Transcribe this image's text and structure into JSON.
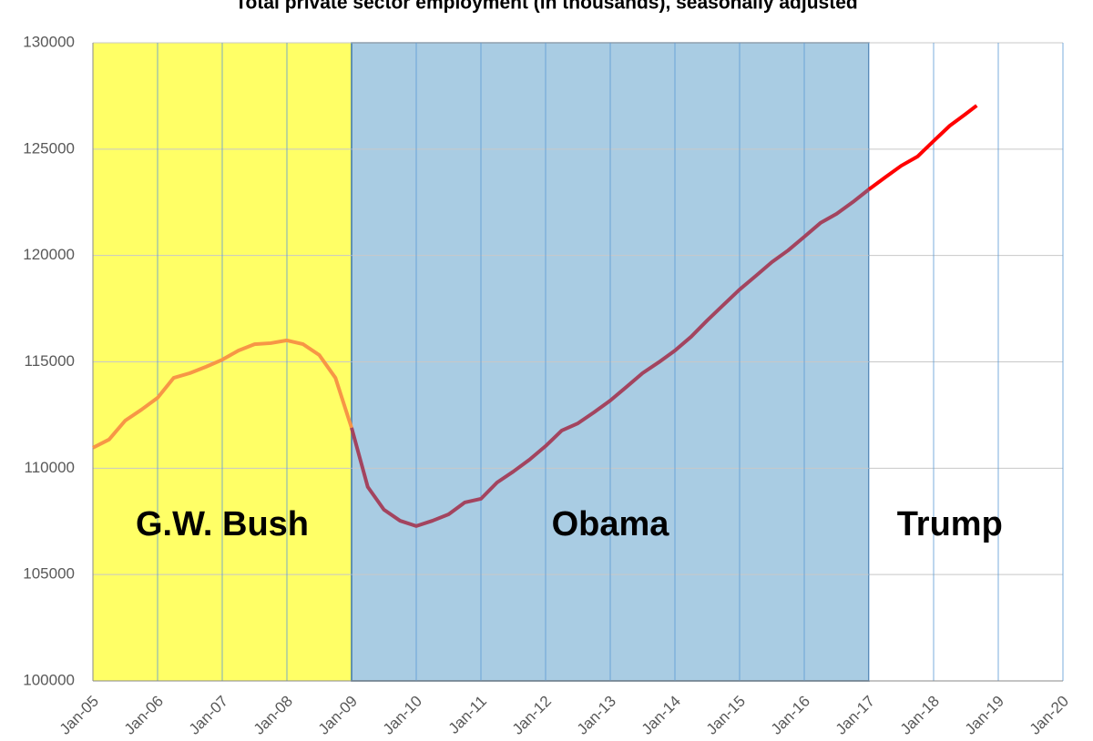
{
  "chart_data": {
    "type": "line",
    "title": "Total private sector employment (in thousands), seasonally adjusted",
    "x": [
      "2005-01",
      "2005-04",
      "2005-07",
      "2005-10",
      "2006-01",
      "2006-04",
      "2006-07",
      "2006-10",
      "2007-01",
      "2007-04",
      "2007-07",
      "2007-10",
      "2008-01",
      "2008-04",
      "2008-07",
      "2008-10",
      "2009-01",
      "2009-04",
      "2009-07",
      "2009-10",
      "2010-01",
      "2010-04",
      "2010-07",
      "2010-10",
      "2011-01",
      "2011-04",
      "2011-07",
      "2011-10",
      "2012-01",
      "2012-04",
      "2012-07",
      "2012-10",
      "2013-01",
      "2013-04",
      "2013-07",
      "2013-10",
      "2014-01",
      "2014-04",
      "2014-07",
      "2014-10",
      "2015-01",
      "2015-04",
      "2015-07",
      "2015-10",
      "2016-01",
      "2016-04",
      "2016-07",
      "2016-10",
      "2017-01",
      "2017-04",
      "2017-07",
      "2017-10",
      "2018-01",
      "2018-04",
      "2018-07",
      "2018-09"
    ],
    "series": [
      {
        "color": "#f79646",
        "values": [
          110960,
          111350,
          112240,
          112750,
          113310,
          114250,
          114470,
          114770,
          115100,
          115530,
          115830,
          115880,
          116010,
          115830,
          115320,
          114250,
          111900,
          null,
          null,
          null,
          null,
          null,
          null,
          null,
          null,
          null,
          null,
          null,
          null,
          null,
          null,
          null,
          null,
          null,
          null,
          null,
          null,
          null,
          null,
          null,
          null,
          null,
          null,
          null,
          null,
          null,
          null,
          null,
          null,
          null,
          null,
          null,
          null,
          null,
          null,
          null
        ]
      },
      {
        "color": "#a3445f",
        "values": [
          null,
          null,
          null,
          null,
          null,
          null,
          null,
          null,
          null,
          null,
          null,
          null,
          null,
          null,
          null,
          null,
          111900,
          109120,
          108050,
          107530,
          107280,
          107530,
          107830,
          108390,
          108560,
          109330,
          109840,
          110400,
          111040,
          111770,
          112110,
          112630,
          113180,
          113820,
          114470,
          114980,
          115530,
          116180,
          116950,
          117680,
          118400,
          119040,
          119690,
          120240,
          120880,
          121530,
          121960,
          122510,
          123110,
          null,
          null,
          null,
          null,
          null,
          null,
          null
        ]
      },
      {
        "color": "#ff0000",
        "values": [
          null,
          null,
          null,
          null,
          null,
          null,
          null,
          null,
          null,
          null,
          null,
          null,
          null,
          null,
          null,
          null,
          null,
          null,
          null,
          null,
          null,
          null,
          null,
          null,
          null,
          null,
          null,
          null,
          null,
          null,
          null,
          null,
          null,
          null,
          null,
          null,
          null,
          null,
          null,
          null,
          null,
          null,
          null,
          null,
          null,
          null,
          null,
          null,
          123110,
          123670,
          124220,
          124650,
          125380,
          126100,
          126660,
          127050
        ]
      }
    ],
    "regions": [
      {
        "label": "G.W. Bush",
        "start": "2005-01",
        "end": "2009-01",
        "color": "#ffff66"
      },
      {
        "label": "Obama",
        "start": "2009-01",
        "end": "2017-01",
        "color": "#a9cce3"
      },
      {
        "label": "Trump",
        "start": "2017-01",
        "end": "2020-01",
        "color": "#ffffff"
      }
    ],
    "xlim": [
      "2005-01",
      "2020-01"
    ],
    "xticks": [
      {
        "value": "2005-01",
        "label": "Jan-05"
      },
      {
        "value": "2006-01",
        "label": "Jan-06"
      },
      {
        "value": "2007-01",
        "label": "Jan-07"
      },
      {
        "value": "2008-01",
        "label": "Jan-08"
      },
      {
        "value": "2009-01",
        "label": "Jan-09"
      },
      {
        "value": "2010-01",
        "label": "Jan-10"
      },
      {
        "value": "2011-01",
        "label": "Jan-11"
      },
      {
        "value": "2012-01",
        "label": "Jan-12"
      },
      {
        "value": "2013-01",
        "label": "Jan-13"
      },
      {
        "value": "2014-01",
        "label": "Jan-14"
      },
      {
        "value": "2015-01",
        "label": "Jan-15"
      },
      {
        "value": "2016-01",
        "label": "Jan-16"
      },
      {
        "value": "2017-01",
        "label": "Jan-17"
      },
      {
        "value": "2018-01",
        "label": "Jan-18"
      },
      {
        "value": "2019-01",
        "label": "Jan-19"
      },
      {
        "value": "2020-01",
        "label": "Jan-20"
      }
    ],
    "ylim": [
      100000,
      130000
    ],
    "yticks": [
      100000,
      105000,
      110000,
      115000,
      120000,
      125000,
      130000
    ],
    "grid": true
  }
}
